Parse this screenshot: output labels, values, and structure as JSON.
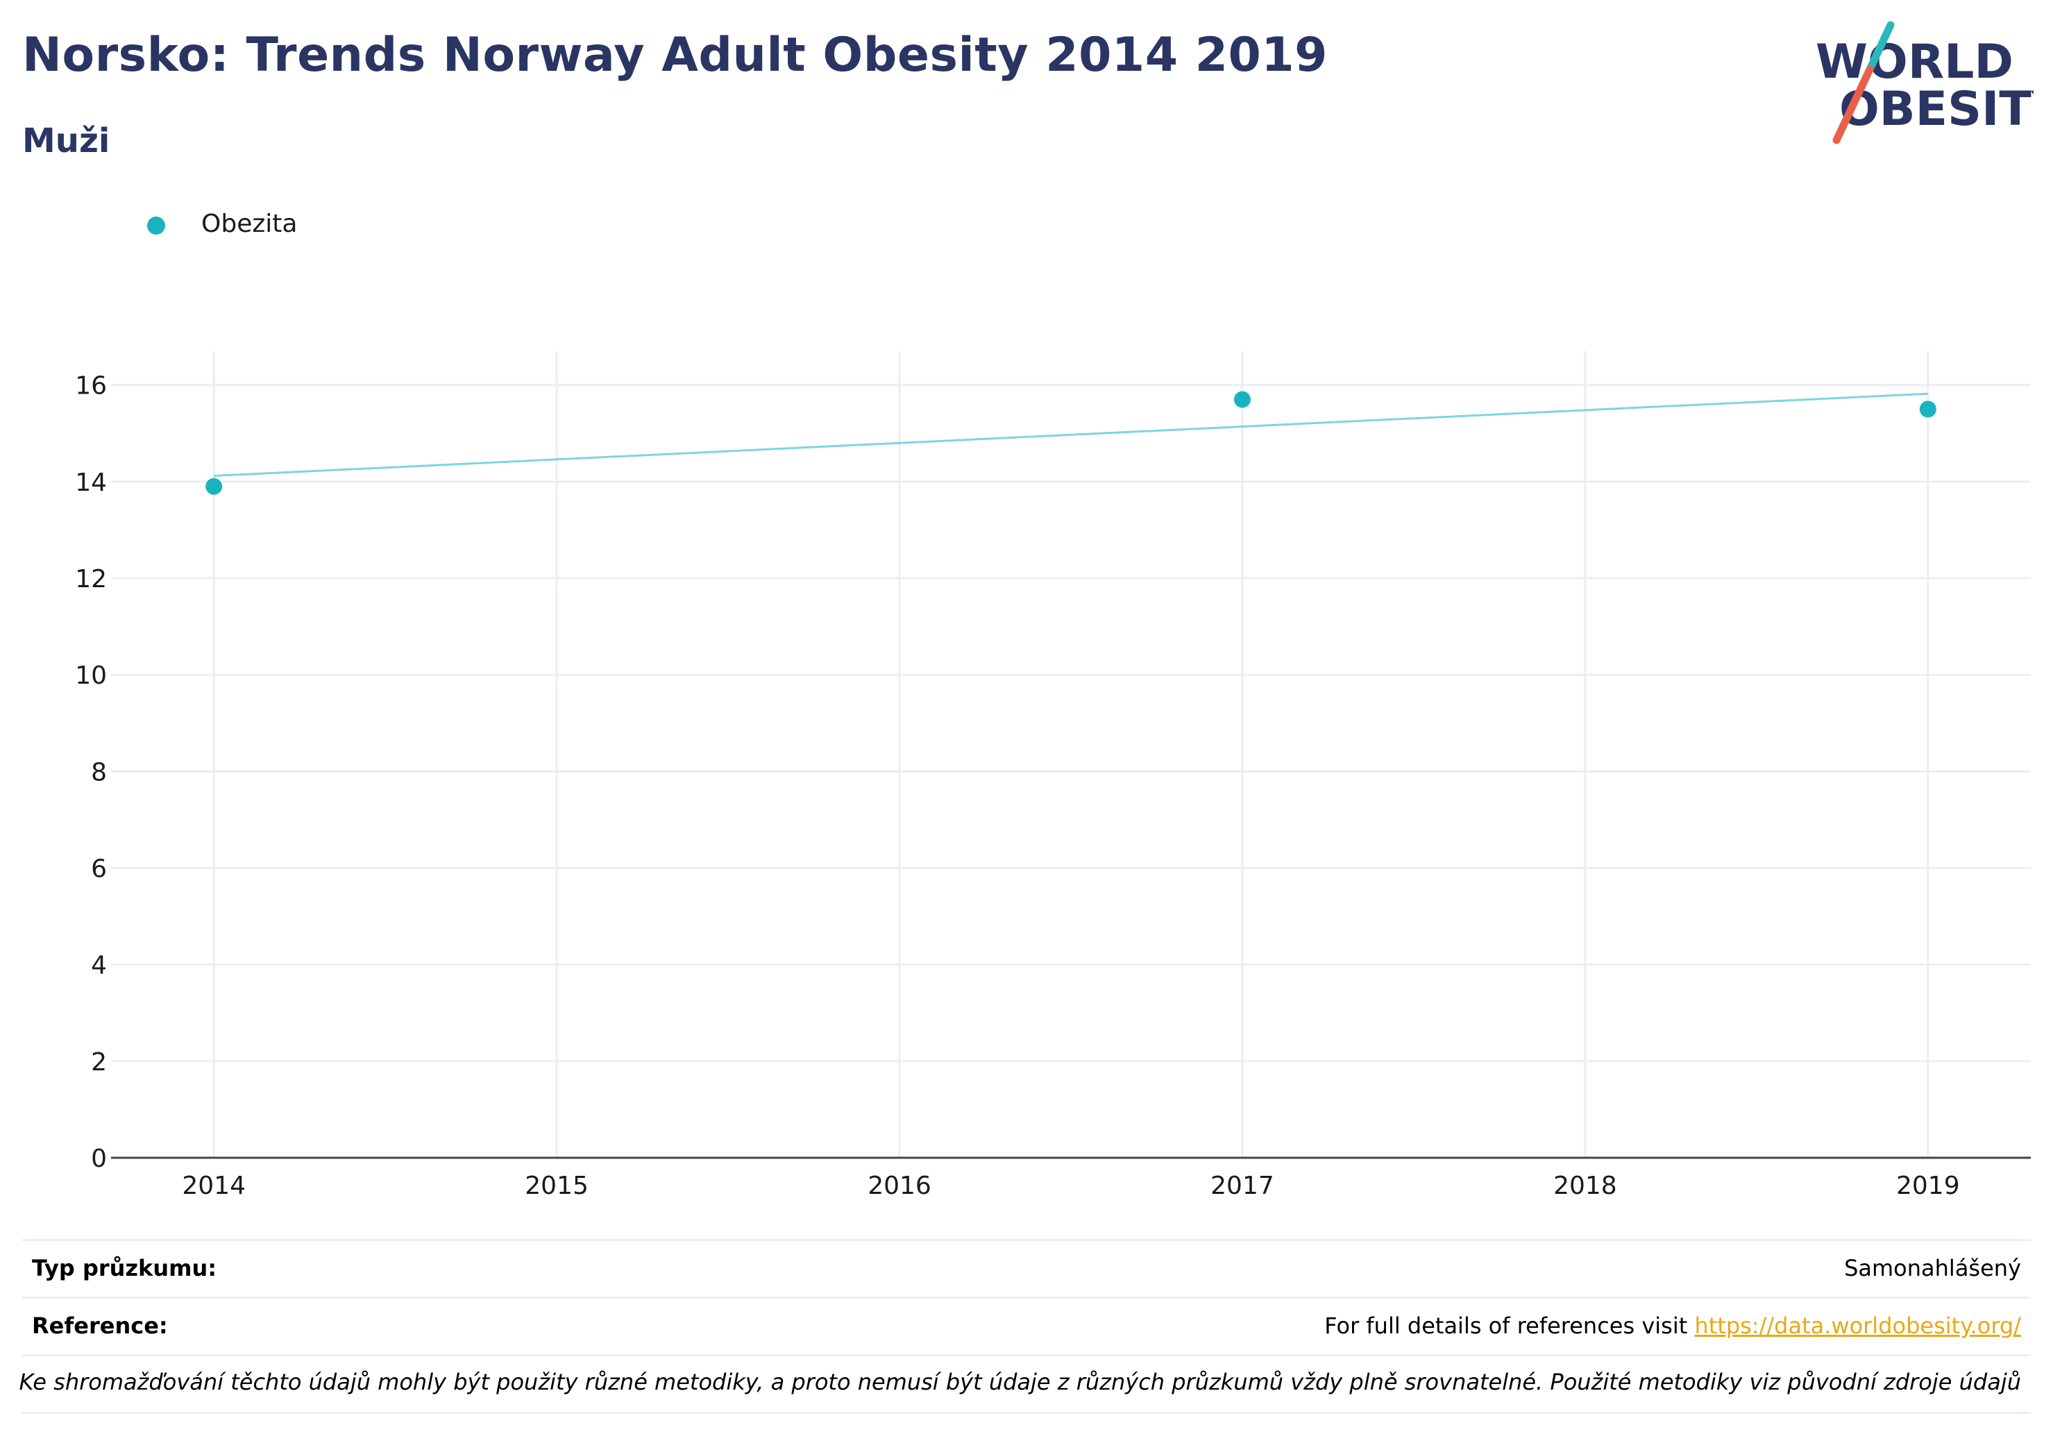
{
  "header": {
    "title": "Norsko: Trends Norway Adult Obesity 2014 2019",
    "subtitle": "Muži"
  },
  "logo": {
    "line1": "WORLD",
    "line2": "OBESITY"
  },
  "colors": {
    "title": "#2a3563",
    "series": "#19b3bf",
    "trend": "#7dd6dc",
    "logo_teal": "#2bb8b9",
    "logo_red": "#e8604c",
    "link": "#e8a917"
  },
  "chart_data": {
    "type": "scatter",
    "legend": {
      "position": "top-left",
      "entries": [
        "Obezita"
      ]
    },
    "series": [
      {
        "name": "Obezita",
        "x": [
          2014,
          2017,
          2019
        ],
        "y": [
          13.9,
          15.7,
          15.5
        ]
      }
    ],
    "trendline": {
      "x": [
        2014,
        2019
      ],
      "y": [
        14.12,
        15.82
      ]
    },
    "xlim": [
      2013.7,
      2019.3
    ],
    "ylim": [
      0,
      16.7
    ],
    "xticks": [
      2014,
      2015,
      2016,
      2017,
      2018,
      2019
    ],
    "yticks": [
      0,
      2,
      4,
      6,
      8,
      10,
      12,
      14,
      16
    ],
    "grid": true,
    "title": "",
    "xlabel": "",
    "ylabel": ""
  },
  "footer": {
    "survey_type_label": "Typ průzkumu:",
    "survey_type_value": "Samonahlášený",
    "reference_label": "Reference:",
    "reference_text": "For full details of references visit ",
    "reference_link": "https://data.worldobesity.org/",
    "note": "Ke shromažďování těchto údajů mohly být použity různé metodiky, a proto nemusí být údaje z různých průzkumů vždy plně srovnatelné. Použité metodiky viz původní zdroje údajů"
  }
}
